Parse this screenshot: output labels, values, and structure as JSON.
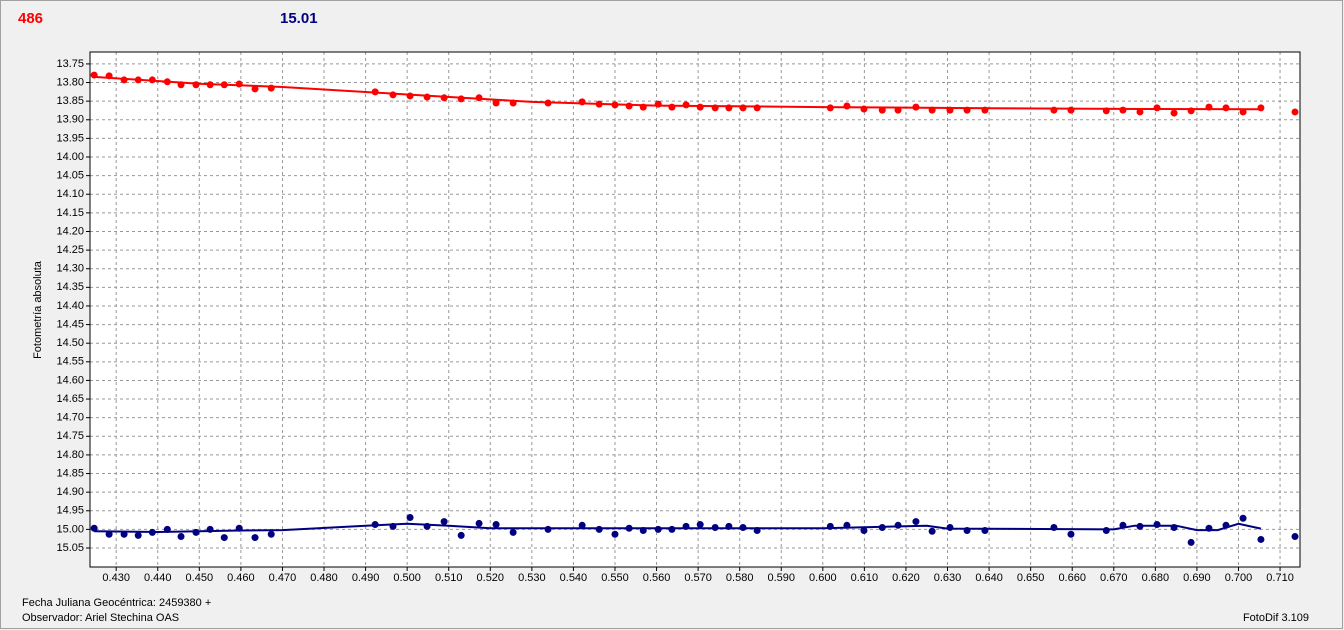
{
  "chart_data": {
    "type": "scatter",
    "y_label": "Fotometría absoluta",
    "x_note": "Fecha Juliana Geocéntrica: 2459380 +",
    "observer": "Observador: Ariel Stechina OAS",
    "software": "FotoDif 3.109",
    "invert_y": true,
    "grid": true,
    "xlim": [
      0.4237,
      0.7148
    ],
    "ylim": [
      13.718,
      15.101
    ],
    "xticks": [
      {
        "value": 0.43,
        "label": "0.430"
      },
      {
        "value": 0.44,
        "label": "0.440"
      },
      {
        "value": 0.45,
        "label": "0.450"
      },
      {
        "value": 0.46,
        "label": "0.460"
      },
      {
        "value": 0.47,
        "label": "0.470"
      },
      {
        "value": 0.48,
        "label": "0.480"
      },
      {
        "value": 0.49,
        "label": "0.490"
      },
      {
        "value": 0.5,
        "label": "0.500"
      },
      {
        "value": 0.51,
        "label": "0.510"
      },
      {
        "value": 0.52,
        "label": "0.520"
      },
      {
        "value": 0.53,
        "label": "0.530"
      },
      {
        "value": 0.54,
        "label": "0.540"
      },
      {
        "value": 0.55,
        "label": "0.550"
      },
      {
        "value": 0.56,
        "label": "0.560"
      },
      {
        "value": 0.57,
        "label": "0.570"
      },
      {
        "value": 0.58,
        "label": "0.580"
      },
      {
        "value": 0.59,
        "label": "0.590"
      },
      {
        "value": 0.6,
        "label": "0.600"
      },
      {
        "value": 0.61,
        "label": "0.610"
      },
      {
        "value": 0.62,
        "label": "0.620"
      },
      {
        "value": 0.63,
        "label": "0.630"
      },
      {
        "value": 0.64,
        "label": "0.640"
      },
      {
        "value": 0.65,
        "label": "0.650"
      },
      {
        "value": 0.66,
        "label": "0.660"
      },
      {
        "value": 0.67,
        "label": "0.670"
      },
      {
        "value": 0.68,
        "label": "0.680"
      },
      {
        "value": 0.69,
        "label": "0.690"
      },
      {
        "value": 0.7,
        "label": "0.700"
      },
      {
        "value": 0.71,
        "label": "0.710"
      }
    ],
    "yticks": [
      13.75,
      {
        "value": 13.8,
        "label": "13.80"
      },
      13.85,
      {
        "value": 13.9,
        "label": "13.90"
      },
      13.95,
      {
        "value": 14,
        "label": "14.00"
      },
      14.05,
      {
        "value": 14.1,
        "label": "14.10"
      },
      14.15,
      {
        "value": 14.2,
        "label": "14.20"
      },
      14.25,
      {
        "value": 14.3,
        "label": "14.30"
      },
      14.35,
      {
        "value": 14.4,
        "label": "14.40"
      },
      14.45,
      {
        "value": 14.5,
        "label": "14.50"
      },
      14.55,
      {
        "value": 14.6,
        "label": "14.60"
      },
      14.65,
      {
        "value": 14.7,
        "label": "14.70"
      },
      14.75,
      {
        "value": 14.8,
        "label": "14.80"
      },
      14.85,
      {
        "value": 14.9,
        "label": "14.90"
      },
      14.95,
      {
        "value": 15,
        "label": "15.00"
      },
      15.05
    ],
    "x": [
      0.4247,
      0.4283,
      0.4319,
      0.4353,
      0.4387,
      0.4423,
      0.4456,
      0.4492,
      0.4526,
      0.456,
      0.4596,
      0.4634,
      0.4673,
      0.4923,
      0.4966,
      0.5007,
      0.5048,
      0.5089,
      0.513,
      0.5173,
      0.5214,
      0.5255,
      0.5339,
      0.5421,
      0.5462,
      0.55,
      0.5534,
      0.5568,
      0.5604,
      0.5637,
      0.5671,
      0.5705,
      0.5741,
      0.5774,
      0.5808,
      0.5842,
      0.6018,
      0.6058,
      0.6099,
      0.6143,
      0.6181,
      0.6224,
      0.6263,
      0.6306,
      0.6347,
      0.639,
      0.6556,
      0.6597,
      0.6682,
      0.6722,
      0.6763,
      0.6804,
      0.6845,
      0.6886,
      0.6929,
      0.697,
      0.7011,
      0.7054,
      0.7136
    ],
    "series": [
      {
        "name": "486",
        "color": "#ff0000",
        "values": [
          13.78,
          13.782,
          13.793,
          13.793,
          13.793,
          13.798,
          13.806,
          13.806,
          13.806,
          13.806,
          13.804,
          13.817,
          13.815,
          13.825,
          13.833,
          13.836,
          13.839,
          13.841,
          13.844,
          13.841,
          13.855,
          13.855,
          13.855,
          13.852,
          13.858,
          13.86,
          13.863,
          13.866,
          13.858,
          13.866,
          13.86,
          13.866,
          13.868,
          13.868,
          13.868,
          13.868,
          13.868,
          13.863,
          13.871,
          13.874,
          13.874,
          13.866,
          13.874,
          13.874,
          13.874,
          13.874,
          13.874,
          13.874,
          13.876,
          13.874,
          13.879,
          13.868,
          13.882,
          13.876,
          13.866,
          13.868,
          13.879,
          13.868,
          13.879
        ],
        "trend_x": [
          0.4247,
          0.45,
          0.47,
          0.5,
          0.53,
          0.56,
          0.6,
          0.64,
          0.68,
          0.7054
        ],
        "trend": [
          13.785,
          13.803,
          13.812,
          13.832,
          13.852,
          13.862,
          13.866,
          13.869,
          13.871,
          13.872
        ]
      },
      {
        "name": "15.01",
        "color": "#000080",
        "values": [
          14.997,
          15.013,
          15.013,
          15.016,
          15.008,
          15.0,
          15.019,
          15.008,
          15.0,
          15.022,
          14.997,
          15.022,
          15.013,
          14.987,
          14.992,
          14.968,
          14.992,
          14.979,
          15.016,
          14.984,
          14.987,
          15.008,
          15.0,
          14.989,
          15.0,
          15.013,
          14.997,
          15.003,
          15.0,
          15.0,
          14.992,
          14.987,
          14.995,
          14.992,
          14.995,
          15.003,
          14.992,
          14.989,
          15.003,
          14.995,
          14.989,
          14.979,
          15.005,
          14.995,
          15.003,
          15.003,
          14.995,
          15.013,
          15.003,
          14.989,
          14.992,
          14.987,
          14.995,
          15.035,
          14.997,
          14.989,
          14.97,
          15.027,
          15.019
        ],
        "trend_x": [
          0.4247,
          0.44,
          0.46,
          0.47,
          0.49,
          0.5,
          0.51,
          0.52,
          0.55,
          0.6,
          0.625,
          0.63,
          0.67,
          0.675,
          0.685,
          0.69,
          0.695,
          0.7,
          0.7054
        ],
        "trend": [
          15.005,
          15.007,
          15.003,
          15.002,
          14.99,
          14.985,
          14.99,
          14.997,
          14.997,
          14.997,
          14.99,
          14.998,
          15.0,
          14.99,
          14.99,
          15.002,
          15.002,
          14.985,
          14.998
        ]
      }
    ]
  }
}
